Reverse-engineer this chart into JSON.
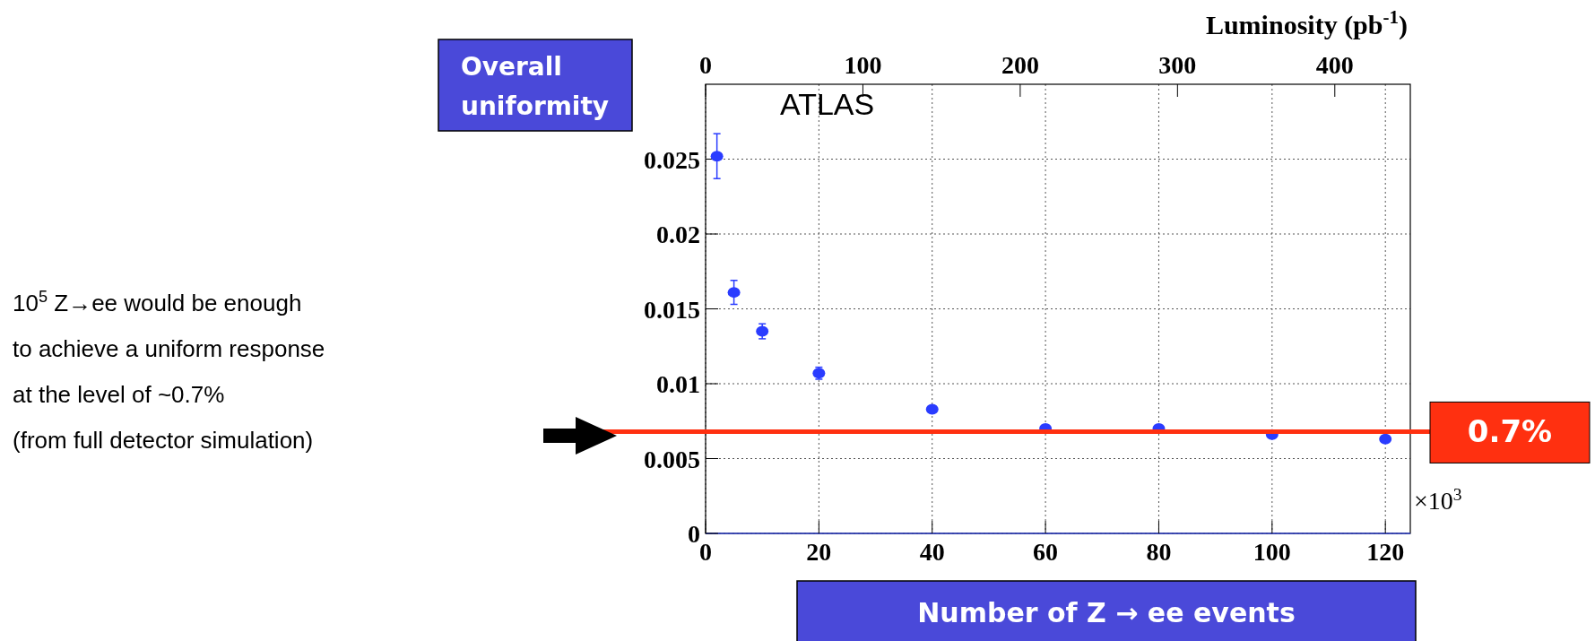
{
  "chart_data": {
    "type": "scatter",
    "ylabel": "Overall uniformity",
    "xlabel": "Number of Z → ee events",
    "x2label": "Luminosity (pb$^{-1}$)",
    "x": [
      2,
      5,
      10,
      20,
      40,
      60,
      80,
      100,
      120
    ],
    "series": [
      {
        "color": "#2a3cff",
        "values": [
          0.0252,
          0.0161,
          0.0135,
          0.0107,
          0.0083,
          0.007,
          0.007,
          0.0066,
          0.0063
        ],
        "errors": [
          0.0015,
          0.0008,
          0.0005,
          0.0004,
          null,
          null,
          null,
          null,
          null
        ]
      }
    ],
    "xlim": [
      0,
      124.4
    ],
    "xticks": [
      0,
      20,
      40,
      60,
      80,
      100,
      120
    ],
    "x2lim": [
      0,
      448
    ],
    "x2ticks": [
      0,
      100,
      200,
      300,
      400
    ],
    "ylim": [
      0,
      0.03
    ],
    "yticks": [
      0,
      0.005,
      0.01,
      0.015,
      0.02,
      0.025
    ],
    "grid": true,
    "marker": "circle",
    "ref_lines": [
      {
        "axis": "y",
        "value": 0.0068,
        "label": "0.7%",
        "color": "#ff3010"
      }
    ],
    "annotations": [
      "ATLAS",
      "10$^{5}$ Z→ee would be enough\nto achieve a uniform response\nat the level of ~0.7%\n(from full detector simulation)",
      "×10$^{3}$"
    ]
  }
}
